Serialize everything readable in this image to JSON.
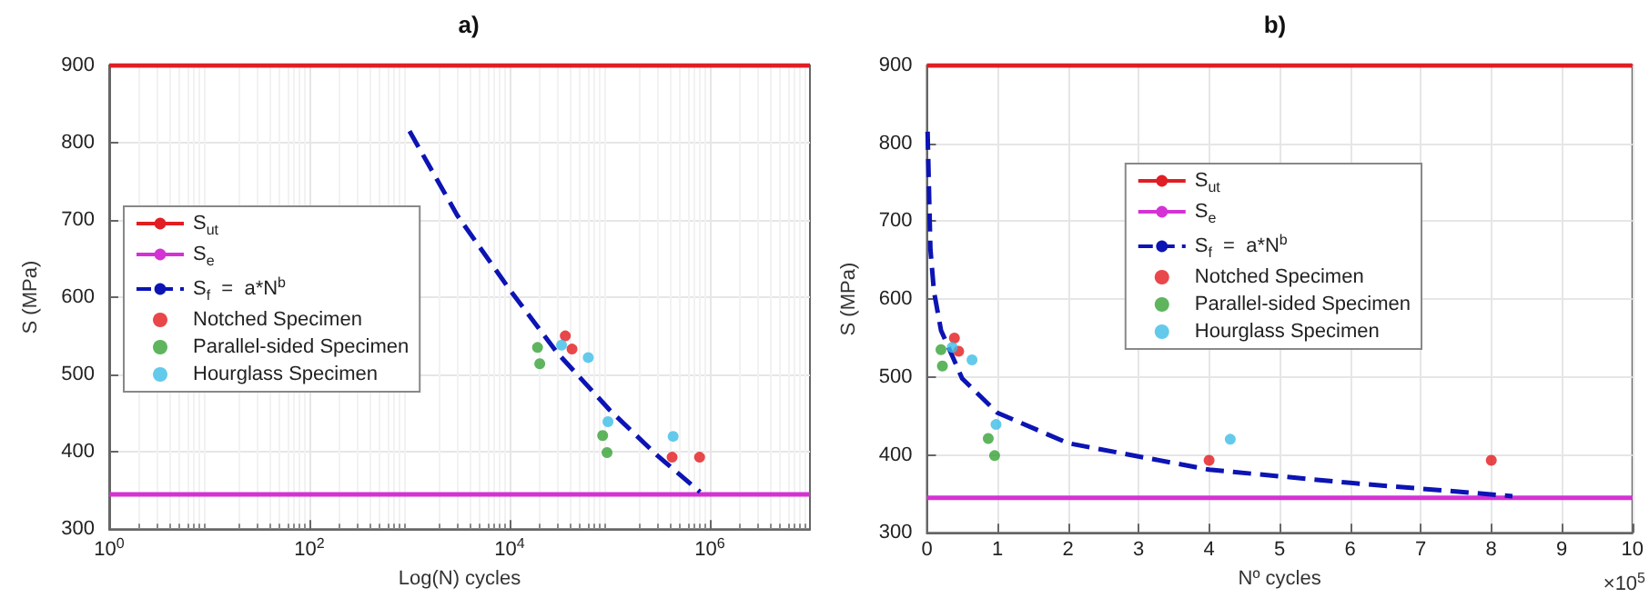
{
  "chart_data": [
    {
      "type": "scatter",
      "title": "a)",
      "xlabel": "Log(N) cycles",
      "ylabel": "S (MPa)",
      "log": "x",
      "xlim": [
        1,
        10000000
      ],
      "xticks": [
        {
          "value": 1,
          "label": "10$^{0}$"
        },
        {
          "value": 100,
          "label": "10$^{2}$"
        },
        {
          "value": 10000,
          "label": "10$^{4}$"
        },
        {
          "value": 1000000,
          "label": "10$^{6}$"
        }
      ],
      "ylim": [
        300,
        900
      ],
      "yticks": [
        300,
        400,
        500,
        600,
        700,
        800,
        900
      ],
      "grid": true,
      "legend": "left",
      "series": [
        {
          "name": "S$_{ut}$",
          "type": "line",
          "marker": "none",
          "line_style": "solid",
          "color": "#e01e24",
          "x": [
            1,
            10000000
          ],
          "values": [
            900,
            900
          ]
        },
        {
          "name": "S$_{e}$",
          "type": "line",
          "marker": "none",
          "line_style": "solid",
          "color": "#d432d4",
          "x": [
            1,
            10000000
          ],
          "values": [
            345,
            345
          ]
        },
        {
          "name": "S$_{f}$  =  a*N$^{b}$",
          "type": "line",
          "marker": "none",
          "line_style": "dashed",
          "color": "#0c14b4",
          "x": [
            1000,
            3000,
            10000,
            30000,
            100000,
            300000,
            800000
          ],
          "values": [
            815,
            706,
            610,
            528,
            454,
            395,
            348
          ]
        },
        {
          "name": "Notched Specimen",
          "marker": "circle",
          "color": "#e3191c",
          "x": [
            36000,
            42000,
            420000,
            790000
          ],
          "values": [
            550,
            533,
            393,
            393
          ]
        },
        {
          "name": "Parallel-sided Specimen",
          "marker": "circle",
          "color": "#36a336",
          "x": [
            19000,
            20000,
            85000,
            94000
          ],
          "values": [
            535,
            514,
            421,
            399
          ]
        },
        {
          "name": "Hourglass Specimen",
          "marker": "circle",
          "color": "#3cbde6",
          "x": [
            33000,
            61000,
            96000,
            430000
          ],
          "values": [
            538,
            522,
            439,
            420
          ]
        }
      ]
    },
    {
      "type": "scatter",
      "title": "b)",
      "xlabel": "Nº cycles",
      "ylabel": "S (MPa)",
      "annotations": [
        "×10$^{5}$"
      ],
      "xlim": [
        0,
        10
      ],
      "xticks": [
        0,
        1,
        2,
        3,
        4,
        5,
        6,
        7,
        8,
        9,
        10
      ],
      "ylim": [
        300,
        900
      ],
      "yticks": [
        300,
        400,
        500,
        600,
        700,
        800,
        900
      ],
      "grid": true,
      "legend": "right",
      "series": [
        {
          "name": "S$_{ut}$",
          "type": "line",
          "marker": "none",
          "line_style": "solid",
          "color": "#e01e24",
          "x": [
            0,
            10
          ],
          "values": [
            900,
            900
          ]
        },
        {
          "name": "S$_{e}$",
          "type": "line",
          "marker": "none",
          "line_style": "solid",
          "color": "#d432d4",
          "x": [
            0,
            10
          ],
          "values": [
            345,
            345
          ]
        },
        {
          "name": "S$_{f}$  =  a*N$^{b}$",
          "type": "line",
          "marker": "none",
          "line_style": "dashed",
          "color": "#0c14b4",
          "x": [
            0.01,
            0.05,
            0.1,
            0.2,
            0.5,
            1,
            2,
            4,
            6,
            8.3
          ],
          "values": [
            815,
            664,
            610,
            560,
            498,
            454,
            415,
            381,
            364,
            347
          ]
        },
        {
          "name": "Notched Specimen",
          "marker": "circle",
          "color": "#e3191c",
          "x": [
            0.39,
            0.45,
            4,
            8
          ],
          "values": [
            550,
            533,
            393,
            393
          ]
        },
        {
          "name": "Parallel-sided Specimen",
          "marker": "circle",
          "color": "#36a336",
          "x": [
            0.2,
            0.22,
            0.87,
            0.96
          ],
          "values": [
            535,
            514,
            421,
            399
          ]
        },
        {
          "name": "Hourglass Specimen",
          "marker": "circle",
          "color": "#3cbde6",
          "x": [
            0.36,
            0.64,
            0.98,
            4.3
          ],
          "values": [
            538,
            522,
            439,
            420
          ]
        }
      ]
    }
  ]
}
